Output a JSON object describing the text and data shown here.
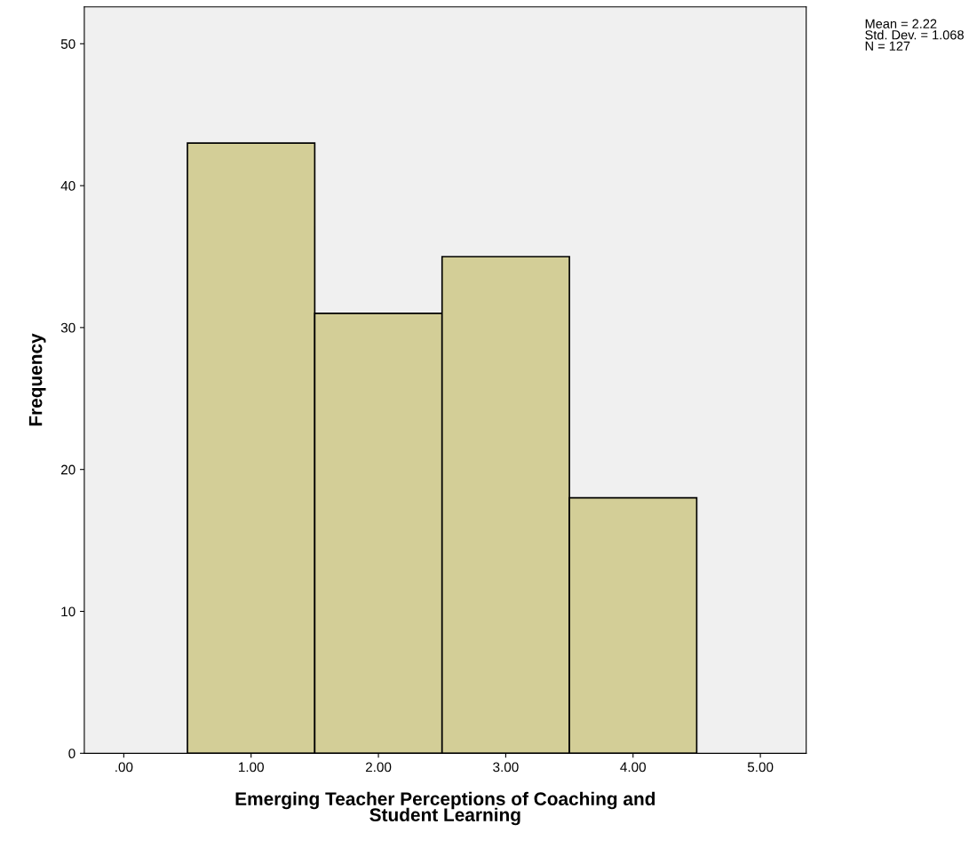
{
  "chart_data": {
    "type": "histogram",
    "xlabel": "Emerging Teacher Perceptions of Coaching and\nStudent Learning",
    "ylabel": "Frequency",
    "bins": [
      0.5,
      1.5,
      2.5,
      3.5,
      4.5
    ],
    "values": [
      43,
      31,
      35,
      18
    ],
    "color": "#d3ce97",
    "xlim": [
      -0.31,
      5.36
    ],
    "ylim": [
      0,
      52.6
    ],
    "xticks": [
      {
        "value": 0,
        "label": ".00"
      },
      {
        "value": 1,
        "label": "1.00"
      },
      {
        "value": 2,
        "label": "2.00"
      },
      {
        "value": 3,
        "label": "3.00"
      },
      {
        "value": 4,
        "label": "4.00"
      },
      {
        "value": 5,
        "label": "5.00"
      }
    ],
    "yticks": [
      0,
      10,
      20,
      30,
      40,
      50
    ],
    "grid": false,
    "legend": false,
    "annotations": [
      "Mean = 2.22",
      "Std. Dev. = 1.068",
      "N = 127"
    ]
  }
}
